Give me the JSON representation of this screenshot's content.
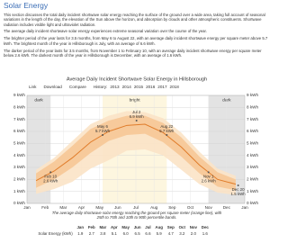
{
  "header": {
    "title": "Solar Energy"
  },
  "paragraphs": [
    "This section discusses the total daily incident shortwave solar energy reaching the surface of the ground over a wide area, taking full account of seasonal variations in the length of the day, the elevation of the Sun above the horizon, and absorption by clouds and other atmospheric constituents. Shortwave radiation includes visible light and ultraviolet radiation.",
    "The average daily incident shortwave solar energy experiences extreme seasonal variation over the course of the year.",
    "The brighter period of the year lasts for 3.5 months, from May 6 to August 22, with an average daily incident shortwave energy per square meter above 5.7 kWh. The brightest month of the year in Hillsborough is July, with an average of 6.6 kWh.",
    "The darker period of the year lasts for 3.5 months, from November 1 to February 10, with an average daily incident shortwave energy per square meter below 2.6 kWh. The darkest month of the year in Hillsborough is December, with an average of 1.6 kWh."
  ],
  "toolbar": {
    "link": "Link",
    "download": "Download",
    "compare": "Compare",
    "history": "History:",
    "years": [
      "2013",
      "2014",
      "2015",
      "2016",
      "2017",
      "2018"
    ]
  },
  "chart_data": {
    "type": "band-line",
    "title": "Average Daily Incident Shortwave Solar Energy in Hillsborough",
    "caption": "The average daily shortwave solar energy reaching the ground per square meter (orange line), with 25th to 75th and 10th to 90th percentile bands.",
    "categories": [
      "Jan",
      "Feb",
      "Mar",
      "Apr",
      "May",
      "Jun",
      "Jul",
      "Aug",
      "Sep",
      "Oct",
      "Nov",
      "Dec"
    ],
    "end_label": "Jan",
    "series": [
      {
        "name": "10th percentile",
        "color": "#fbe3c6",
        "values": [
          0.8,
          1.2,
          1.8,
          2.9,
          3.6,
          4.4,
          4.5,
          4.0,
          2.8,
          1.6,
          0.9,
          0.7
        ]
      },
      {
        "name": "25th percentile",
        "color": "#f6c796",
        "values": [
          1.3,
          2.0,
          3.0,
          4.2,
          5.2,
          5.7,
          5.8,
          5.1,
          3.9,
          2.5,
          1.4,
          1.1
        ]
      },
      {
        "name": "average",
        "color": "#e07c2a",
        "values": [
          1.9,
          2.7,
          3.8,
          5.1,
          6.0,
          6.5,
          6.6,
          5.9,
          4.7,
          3.2,
          2.0,
          1.6
        ]
      },
      {
        "name": "75th percentile",
        "color": "#f6c796",
        "values": [
          2.5,
          3.5,
          4.8,
          6.2,
          6.9,
          7.3,
          7.3,
          6.7,
          5.5,
          3.9,
          2.6,
          2.0
        ]
      },
      {
        "name": "90th percentile",
        "color": "#fbe3c6",
        "values": [
          2.8,
          3.8,
          5.2,
          6.6,
          7.3,
          7.7,
          7.6,
          7.1,
          5.9,
          4.3,
          2.9,
          2.3
        ]
      }
    ],
    "seasons": [
      {
        "label": "dark",
        "from": "Nov 1",
        "to": "Feb 10",
        "color": "#e3e3e3"
      },
      {
        "label": "bright",
        "from": "May 6",
        "to": "Aug 22",
        "color": "#fdf6df"
      }
    ],
    "annotations": [
      {
        "date": "Feb 10",
        "value": 2.6,
        "value_label": "2.6 kWh"
      },
      {
        "date": "May 6",
        "value": 5.7,
        "value_label": "5.7 kWh"
      },
      {
        "date": "Jul 2",
        "value": 6.9,
        "value_label": "6.9 kWh"
      },
      {
        "date": "Aug 22",
        "value": 5.7,
        "value_label": "5.7 kWh"
      },
      {
        "date": "Nov 1",
        "value": 2.6,
        "value_label": "2.6 kWh"
      },
      {
        "date": "Dec 20",
        "value": 1.5,
        "value_label": "1.5 kWh"
      }
    ],
    "ylim": [
      0,
      9
    ],
    "yticks": [
      {
        "value": 0,
        "label": "0 kWh"
      },
      {
        "value": 1,
        "label": "1 kWh"
      },
      {
        "value": 2,
        "label": "2 kWh"
      },
      {
        "value": 3,
        "label": "3 kWh"
      },
      {
        "value": 4,
        "label": "4 kWh"
      },
      {
        "value": 5,
        "label": "5 kWh"
      },
      {
        "value": 6,
        "label": "6 kWh"
      },
      {
        "value": 7,
        "label": "7 kWh"
      },
      {
        "value": 8,
        "label": "8 kWh"
      },
      {
        "value": 9,
        "label": "9 kWh"
      }
    ],
    "grid": true
  },
  "table": {
    "header": [
      "Jan",
      "Feb",
      "Mar",
      "Apr",
      "May",
      "Jun",
      "Jul",
      "Aug",
      "Sep",
      "Oct",
      "Nov",
      "Dec"
    ],
    "row_label": "Solar Energy (kWh)",
    "values": [
      "1.9",
      "2.7",
      "3.8",
      "5.1",
      "6.0",
      "6.5",
      "6.6",
      "5.9",
      "4.7",
      "3.2",
      "2.0",
      "1.6"
    ]
  }
}
